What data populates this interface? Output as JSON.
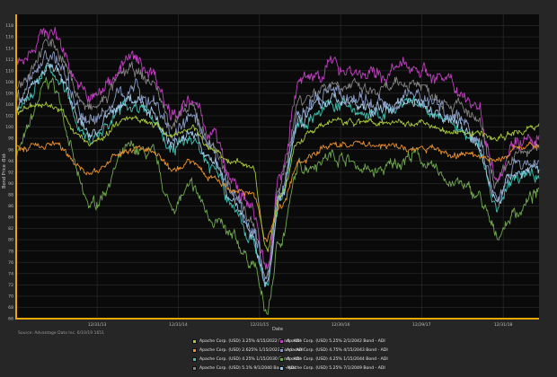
{
  "chart_data": {
    "type": "line",
    "xlabel": "Date",
    "ylabel": "Bond Price -Bid-",
    "x_ticks": [
      "12/31/13",
      "12/31/14",
      "12/31/15",
      "12/30/16",
      "12/29/17",
      "12/31/18"
    ],
    "ylim": [
      66,
      120
    ],
    "y_ticks": [
      66,
      68,
      70,
      72,
      74,
      76,
      78,
      80,
      82,
      84,
      86,
      88,
      90,
      92,
      94,
      96,
      98,
      100,
      102,
      104,
      106,
      108,
      110,
      112,
      114,
      116,
      118
    ],
    "grid": true,
    "legend_placement": "bottom",
    "source": "Source: Advantage Data Inc. 6/10/19 1651",
    "x_dates": [
      "2013-01",
      "2013-06",
      "2013-12",
      "2014-06",
      "2014-09",
      "2014-12",
      "2015-03",
      "2015-06",
      "2015-09",
      "2015-12",
      "2016-02",
      "2016-04",
      "2016-07",
      "2016-12",
      "2017-06",
      "2017-12",
      "2018-03",
      "2018-06",
      "2018-09",
      "2018-12",
      "2019-03",
      "2019-06"
    ],
    "series": [
      {
        "name": "Apache Corp. (USD) 3.25% 4/15/2022 Bond - ADI",
        "color": "#a8c83c",
        "values": [
          103,
          104,
          97,
          102,
          101,
          98,
          100,
          96,
          94,
          93,
          78,
          88,
          98,
          101,
          101,
          101,
          100,
          99,
          99,
          98,
          99,
          100
        ]
      },
      {
        "name": "Apache Corp. (USD) 5.25% 2/1/2042 Bond - ADI",
        "color": "#c040c0",
        "values": [
          112,
          117,
          105,
          112,
          110,
          103,
          104,
          99,
          90,
          85,
          74,
          92,
          108,
          111,
          109,
          111,
          109,
          107,
          104,
          92,
          98,
          97
        ]
      },
      {
        "name": "Apache Corp. (USD) 2.625% 1/15/2023 Bond - ADI",
        "color": "#e89030",
        "values": [
          96,
          97,
          92,
          96,
          96,
          92,
          94,
          91,
          89,
          88,
          80,
          86,
          94,
          97,
          97,
          96,
          96,
          95,
          95,
          94,
          96,
          97
        ]
      },
      {
        "name": "Apache Corp. (USD) 4.75% 4/15/2043 Bond - ADI",
        "color": "#8898c0",
        "values": [
          105,
          113,
          101,
          107,
          105,
          99,
          101,
          95,
          88,
          82,
          73,
          89,
          103,
          106,
          104,
          106,
          104,
          102,
          99,
          88,
          93,
          94
        ]
      },
      {
        "name": "Apache Corp. (USD) 4.25% 1/15/2030 Bond - ADI",
        "color": "#40c0b0",
        "values": [
          103,
          110,
          98,
          104,
          102,
          96,
          98,
          93,
          86,
          80,
          72,
          87,
          101,
          104,
          102,
          104,
          102,
          100,
          97,
          86,
          91,
          92
        ]
      },
      {
        "name": "Apache Corp. (USD) 4.25% 1/15/2044 Bond - ADI",
        "color": "#70a850",
        "values": [
          96,
          108,
          86,
          96,
          95,
          86,
          89,
          84,
          80,
          76,
          67,
          80,
          93,
          95,
          92,
          95,
          92,
          90,
          88,
          81,
          85,
          88
        ]
      },
      {
        "name": "Apache Corp. (USD) 5.1% 9/1/2040 Bond - ADI",
        "color": "#808080",
        "values": [
          108,
          115,
          103,
          110,
          108,
          101,
          103,
          97,
          89,
          83,
          73,
          90,
          105,
          108,
          106,
          108,
          106,
          104,
          101,
          90,
          95,
          96
        ]
      },
      {
        "name": "Apache Corp. (USD) 5.25% 7/1/2049 Bond - ADI",
        "color": "#a0c8e8",
        "values": [
          104,
          111,
          99,
          105,
          103,
          97,
          99,
          94,
          87,
          81,
          72,
          88,
          102,
          105,
          103,
          105,
          103,
          101,
          98,
          87,
          92,
          93
        ]
      }
    ]
  }
}
